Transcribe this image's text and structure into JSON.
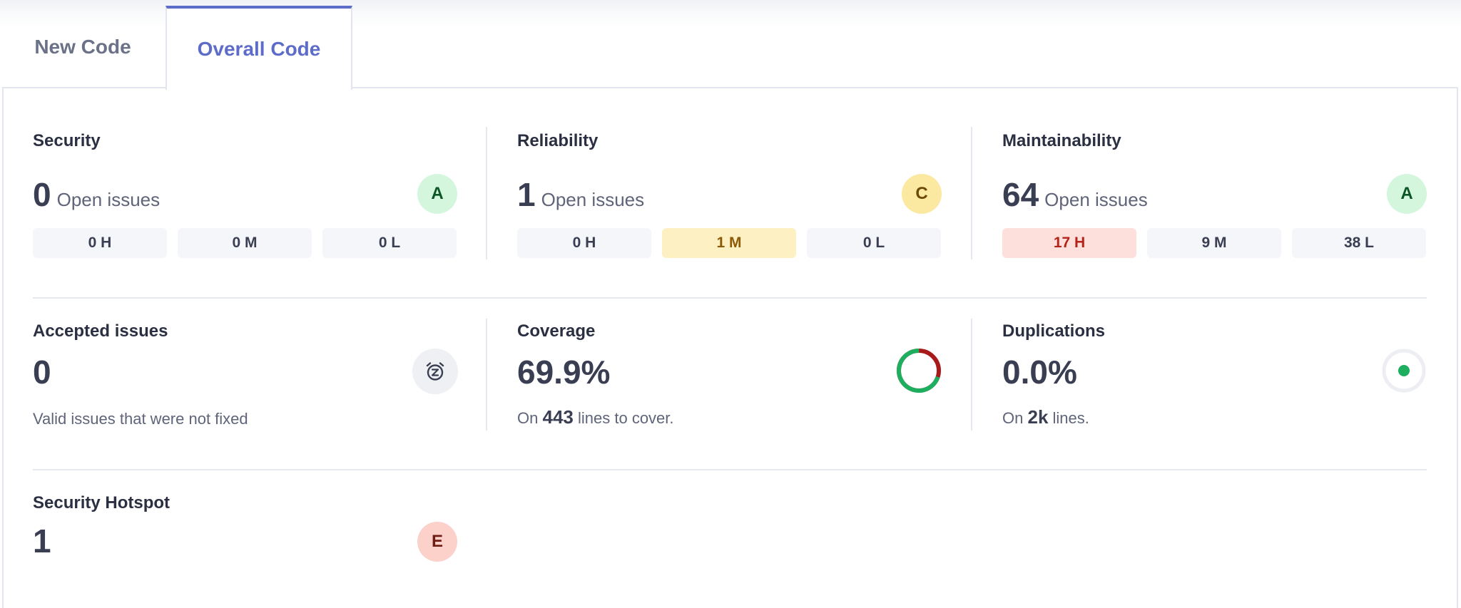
{
  "tabs": [
    {
      "label": "New Code",
      "active": false
    },
    {
      "label": "Overall Code",
      "active": true
    }
  ],
  "security": {
    "title": "Security",
    "count": "0",
    "count_label": "Open issues",
    "rating": "A",
    "high": "0 H",
    "medium": "0 M",
    "low": "0 L"
  },
  "reliability": {
    "title": "Reliability",
    "count": "1",
    "count_label": "Open issues",
    "rating": "C",
    "high": "0 H",
    "medium": "1 M",
    "low": "0 L"
  },
  "maintainability": {
    "title": "Maintainability",
    "count": "64",
    "count_label": "Open issues",
    "rating": "A",
    "high": "17 H",
    "medium": "9 M",
    "low": "38 L"
  },
  "accepted": {
    "title": "Accepted issues",
    "count": "0",
    "description": "Valid issues that were not fixed",
    "icon": "snooze-alarm-icon"
  },
  "coverage": {
    "title": "Coverage",
    "value": "69.9%",
    "prefix": "On",
    "lines": "443",
    "suffix": "lines to cover.",
    "percent": 69.9
  },
  "duplications": {
    "title": "Duplications",
    "value": "0.0%",
    "prefix": "On",
    "lines": "2k",
    "suffix": "lines.",
    "percent": 0.0
  },
  "hotspot": {
    "title": "Security Hotspot",
    "count": "1",
    "rating": "E"
  },
  "colors": {
    "accent": "#5d6cc9",
    "rating_a_bg": "#d3f6dd",
    "rating_a_fg": "#0c5527",
    "rating_c_bg": "#fbe9a2",
    "rating_c_fg": "#6b4a04",
    "rating_e_bg": "#fbd1ca",
    "rating_e_fg": "#6f1d13",
    "coverage_good": "#1daf5f",
    "coverage_bad": "#a71b1b"
  }
}
